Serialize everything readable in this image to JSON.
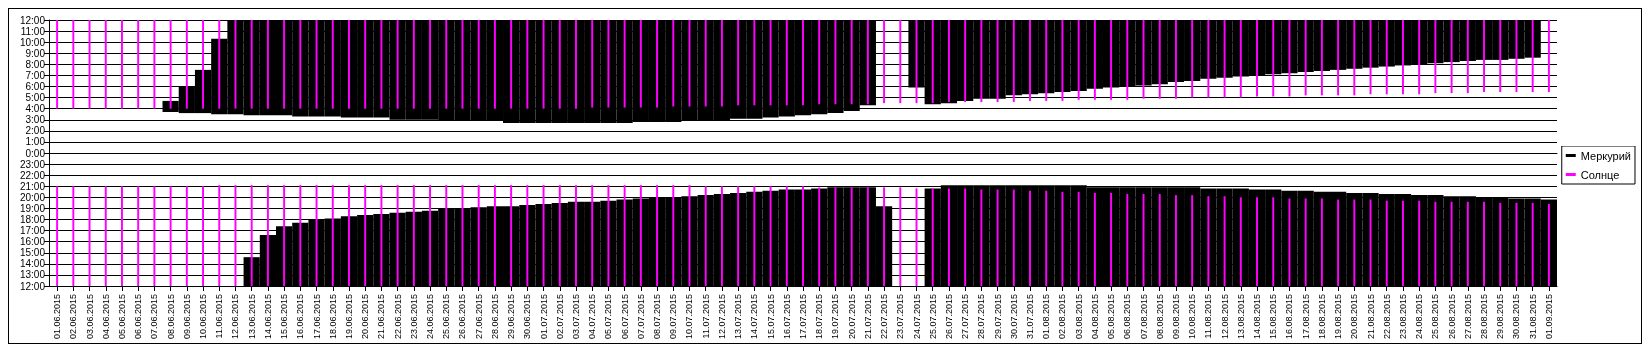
{
  "chart_data": [
    {
      "type": "bar",
      "categories": [
        "01.06.2015",
        "02.06.2015",
        "03.06.2015",
        "04.06.2015",
        "05.06.2015",
        "06.06.2015",
        "07.06.2015",
        "08.06.2015",
        "09.06.2015",
        "10.06.2015",
        "11.06.2015",
        "12.06.2015",
        "13.06.2015",
        "14.06.2015",
        "15.06.2015",
        "16.06.2015",
        "17.06.2015",
        "18.06.2015",
        "19.06.2015",
        "20.06.2015",
        "21.06.2015",
        "22.06.2015",
        "23.06.2015",
        "24.06.2015",
        "25.06.2015",
        "26.06.2015",
        "27.06.2015",
        "28.06.2015",
        "29.06.2015",
        "30.06.2015",
        "01.07.2015",
        "02.07.2015",
        "03.07.2015",
        "04.07.2015",
        "05.07.2015",
        "06.07.2015",
        "07.07.2015",
        "08.07.2015",
        "09.07.2015",
        "10.07.2015",
        "11.07.2015",
        "12.07.2015",
        "13.07.2015",
        "14.07.2015",
        "15.07.2015",
        "16.07.2015",
        "17.07.2015",
        "18.07.2015",
        "19.07.2015",
        "20.07.2015",
        "21.07.2015",
        "22.07.2015",
        "23.07.2015",
        "24.07.2015",
        "25.07.2015",
        "26.07.2015",
        "27.07.2015",
        "28.07.2015",
        "29.07.2015",
        "30.07.2015",
        "31.07.2015",
        "01.08.2015",
        "02.08.2015",
        "03.08.2015",
        "04.08.2015",
        "05.08.2015",
        "06.08.2015",
        "07.08.2015",
        "08.08.2015",
        "09.08.2015",
        "10.08.2015",
        "11.08.2015",
        "12.08.2015",
        "13.08.2015",
        "14.08.2015",
        "15.08.2015",
        "16.08.2015",
        "17.08.2015",
        "18.08.2015",
        "19.08.2015",
        "20.08.2015",
        "21.08.2015",
        "22.08.2015",
        "23.08.2015",
        "24.08.2015",
        "25.08.2015",
        "26.08.2015",
        "27.08.2015",
        "28.08.2015",
        "29.08.2015",
        "30.08.2015",
        "31.08.2015",
        "01.09.2015"
      ],
      "series": [
        {
          "color": "#000000",
          "base": [
            null,
            null,
            null,
            null,
            null,
            null,
            null,
            3.7,
            3.6,
            3.6,
            3.5,
            3.5,
            3.4,
            3.4,
            3.4,
            3.3,
            3.3,
            3.3,
            3.2,
            3.2,
            3.2,
            3.0,
            3.0,
            3.0,
            2.9,
            2.9,
            2.9,
            2.9,
            2.7,
            2.7,
            2.7,
            2.7,
            2.7,
            2.7,
            2.7,
            2.7,
            2.8,
            2.8,
            2.8,
            2.9,
            2.9,
            2.9,
            3.1,
            3.1,
            3.2,
            3.3,
            3.4,
            3.5,
            3.6,
            3.8,
            4.3,
            null,
            null,
            5.9,
            4.4,
            4.5,
            4.7,
            4.9,
            4.9,
            5.2,
            5.3,
            5.4,
            5.5,
            5.6,
            5.8,
            5.9,
            6.0,
            6.1,
            6.2,
            6.4,
            6.5,
            6.7,
            6.8,
            6.9,
            7.0,
            7.1,
            7.2,
            7.3,
            7.4,
            7.5,
            7.6,
            7.7,
            7.8,
            7.9,
            8.0,
            8.1,
            8.2,
            8.3,
            8.4,
            8.4,
            8.5,
            8.6,
            null
          ],
          "values": [
            null,
            null,
            null,
            null,
            null,
            null,
            null,
            1.0,
            2.4,
            3.9,
            6.8,
            8.5,
            8.6,
            8.6,
            8.6,
            8.7,
            8.7,
            8.7,
            8.8,
            8.8,
            8.8,
            9.0,
            9.0,
            9.0,
            9.1,
            9.1,
            9.1,
            9.1,
            9.3,
            9.3,
            9.3,
            9.3,
            9.3,
            9.3,
            9.3,
            9.3,
            9.2,
            9.2,
            9.2,
            9.1,
            9.1,
            9.1,
            8.9,
            8.9,
            8.8,
            8.7,
            8.6,
            8.5,
            8.4,
            8.2,
            7.7,
            null,
            null,
            6.1,
            7.6,
            7.5,
            7.3,
            7.1,
            7.1,
            6.8,
            6.7,
            6.6,
            6.5,
            6.4,
            6.2,
            6.1,
            6.0,
            5.9,
            5.8,
            5.6,
            5.5,
            5.3,
            5.2,
            5.1,
            5.0,
            4.9,
            4.8,
            4.7,
            4.6,
            4.5,
            4.4,
            4.3,
            4.2,
            4.1,
            4.0,
            3.9,
            3.8,
            3.7,
            3.6,
            3.6,
            3.5,
            3.4,
            null
          ]
        },
        {
          "color": "#ff00ff",
          "base": [
            4.0,
            4.0,
            4.0,
            4.0,
            4.0,
            4.0,
            4.0,
            4.0,
            4.0,
            4.0,
            4.0,
            4.0,
            4.0,
            4.0,
            4.0,
            4.0,
            4.0,
            4.0,
            4.0,
            4.0,
            4.0,
            4.0,
            4.0,
            4.0,
            4.0,
            4.0,
            4.0,
            4.0,
            4.0,
            4.0,
            4.0,
            4.0,
            4.0,
            4.1,
            4.1,
            4.1,
            4.1,
            4.1,
            4.2,
            4.2,
            4.2,
            4.2,
            4.3,
            4.3,
            4.3,
            4.3,
            4.3,
            4.4,
            4.4,
            4.4,
            4.4,
            4.5,
            4.5,
            4.5,
            4.5,
            4.6,
            4.6,
            4.6,
            4.6,
            4.6,
            4.7,
            4.7,
            4.7,
            4.8,
            4.8,
            4.8,
            4.8,
            4.9,
            4.9,
            4.9,
            5.0,
            5.0,
            5.0,
            5.0,
            5.1,
            5.1,
            5.1,
            5.2,
            5.2,
            5.2,
            5.2,
            5.3,
            5.3,
            5.3,
            5.3,
            5.4,
            5.4,
            5.4,
            5.5,
            5.5,
            5.5,
            5.5,
            5.5
          ],
          "values": [
            8.0,
            8.0,
            8.0,
            8.0,
            8.0,
            8.0,
            8.0,
            8.0,
            8.0,
            8.0,
            8.0,
            8.0,
            8.0,
            8.0,
            8.0,
            8.0,
            8.0,
            8.0,
            8.0,
            8.0,
            8.0,
            8.0,
            8.0,
            8.0,
            8.0,
            8.0,
            8.0,
            8.0,
            8.0,
            8.0,
            8.0,
            8.0,
            8.0,
            7.9,
            7.9,
            7.9,
            7.9,
            7.9,
            7.8,
            7.8,
            7.8,
            7.8,
            7.7,
            7.7,
            7.7,
            7.7,
            7.7,
            7.6,
            7.6,
            7.6,
            7.6,
            7.5,
            7.5,
            7.5,
            7.5,
            7.4,
            7.4,
            7.4,
            7.4,
            7.4,
            7.3,
            7.3,
            7.3,
            7.2,
            7.2,
            7.2,
            7.2,
            7.1,
            7.1,
            7.1,
            7.0,
            7.0,
            7.0,
            7.0,
            6.9,
            6.9,
            6.9,
            6.8,
            6.8,
            6.8,
            6.8,
            6.7,
            6.7,
            6.7,
            6.7,
            6.6,
            6.6,
            6.6,
            6.5,
            6.5,
            6.5,
            6.5,
            6.5
          ]
        }
      ],
      "ylim": [
        0,
        12
      ],
      "yticks": [
        {
          "value": 0,
          "label": "0:00"
        },
        {
          "value": 1,
          "label": "1:00"
        },
        {
          "value": 2,
          "label": "2:00"
        },
        {
          "value": 3,
          "label": "3:00"
        },
        {
          "value": 4,
          "label": "4:00"
        },
        {
          "value": 5,
          "label": "5:00"
        },
        {
          "value": 6,
          "label": "6:00"
        },
        {
          "value": 7,
          "label": "7:00"
        },
        {
          "value": 8,
          "label": "8:00"
        },
        {
          "value": 9,
          "label": "9:00"
        },
        {
          "value": 10,
          "label": "10:00"
        },
        {
          "value": 11,
          "label": "11:00"
        },
        {
          "value": 12,
          "label": "12:00"
        }
      ],
      "tick_labels": "y",
      "grid": "y"
    },
    {
      "type": "bar",
      "categories": [
        "01.06.2015",
        "02.06.2015",
        "03.06.2015",
        "04.06.2015",
        "05.06.2015",
        "06.06.2015",
        "07.06.2015",
        "08.06.2015",
        "09.06.2015",
        "10.06.2015",
        "11.06.2015",
        "12.06.2015",
        "13.06.2015",
        "14.06.2015",
        "15.06.2015",
        "16.06.2015",
        "17.06.2015",
        "18.06.2015",
        "19.06.2015",
        "20.06.2015",
        "21.06.2015",
        "22.06.2015",
        "23.06.2015",
        "24.06.2015",
        "25.06.2015",
        "26.06.2015",
        "27.06.2015",
        "28.06.2015",
        "29.06.2015",
        "30.06.2015",
        "01.07.2015",
        "02.07.2015",
        "03.07.2015",
        "04.07.2015",
        "05.07.2015",
        "06.07.2015",
        "07.07.2015",
        "08.07.2015",
        "09.07.2015",
        "10.07.2015",
        "11.07.2015",
        "12.07.2015",
        "13.07.2015",
        "14.07.2015",
        "15.07.2015",
        "16.07.2015",
        "17.07.2015",
        "18.07.2015",
        "19.07.2015",
        "20.07.2015",
        "21.07.2015",
        "22.07.2015",
        "23.07.2015",
        "24.07.2015",
        "25.07.2015",
        "26.07.2015",
        "27.07.2015",
        "28.07.2015",
        "29.07.2015",
        "30.07.2015",
        "31.07.2015",
        "01.08.2015",
        "02.08.2015",
        "03.08.2015",
        "04.08.2015",
        "05.08.2015",
        "06.08.2015",
        "07.08.2015",
        "08.08.2015",
        "09.08.2015",
        "10.08.2015",
        "11.08.2015",
        "12.08.2015",
        "13.08.2015",
        "14.08.2015",
        "15.08.2015",
        "16.08.2015",
        "17.08.2015",
        "18.08.2015",
        "19.08.2015",
        "20.08.2015",
        "21.08.2015",
        "22.08.2015",
        "23.08.2015",
        "24.08.2015",
        "25.08.2015",
        "26.08.2015",
        "27.08.2015",
        "28.08.2015",
        "29.08.2015",
        "30.08.2015",
        "31.08.2015",
        "01.09.2015"
      ],
      "series": [
        {
          "name": "Меркурий",
          "color": "#000000",
          "values": [
            null,
            null,
            null,
            null,
            null,
            null,
            null,
            null,
            null,
            null,
            null,
            null,
            14.6,
            16.6,
            17.4,
            17.7,
            18.0,
            18.1,
            18.3,
            18.4,
            18.5,
            18.6,
            18.7,
            18.8,
            19.0,
            19.0,
            19.1,
            19.2,
            19.2,
            19.3,
            19.4,
            19.5,
            19.6,
            19.6,
            19.7,
            19.8,
            19.9,
            20.0,
            20.0,
            20.1,
            20.2,
            20.3,
            20.4,
            20.5,
            20.6,
            20.7,
            20.7,
            20.8,
            20.9,
            20.9,
            20.9,
            19.2,
            null,
            null,
            20.8,
            21.1,
            21.1,
            21.1,
            21.1,
            21.1,
            21.1,
            21.1,
            21.1,
            21.1,
            20.9,
            20.9,
            20.9,
            20.9,
            20.9,
            20.9,
            20.9,
            20.8,
            20.8,
            20.8,
            20.7,
            20.7,
            20.6,
            20.6,
            20.5,
            20.5,
            20.4,
            20.4,
            20.3,
            20.3,
            20.2,
            20.2,
            20.1,
            20.1,
            20.0,
            20.0,
            19.9,
            19.9,
            19.8
          ]
        },
        {
          "name": "Солнце",
          "color": "#ff00ff",
          "values": [
            21.0,
            21.0,
            21.0,
            21.0,
            21.0,
            21.0,
            21.0,
            21.0,
            21.0,
            21.0,
            21.1,
            21.1,
            21.1,
            21.1,
            21.1,
            21.1,
            21.1,
            21.1,
            21.1,
            21.1,
            21.1,
            21.1,
            21.1,
            21.1,
            21.1,
            21.1,
            21.1,
            21.1,
            21.1,
            21.1,
            21.1,
            21.1,
            21.1,
            21.1,
            21.1,
            21.1,
            21.1,
            21.1,
            21.1,
            21.1,
            21.0,
            21.0,
            21.0,
            21.0,
            21.0,
            21.0,
            21.0,
            20.9,
            20.9,
            20.9,
            20.9,
            20.9,
            20.9,
            20.8,
            20.8,
            20.8,
            20.8,
            20.7,
            20.7,
            20.7,
            20.6,
            20.6,
            20.5,
            20.5,
            20.4,
            20.4,
            20.3,
            20.3,
            20.3,
            20.2,
            20.2,
            20.1,
            20.1,
            20.0,
            20.0,
            20.0,
            19.9,
            19.9,
            19.9,
            19.8,
            19.8,
            19.8,
            19.7,
            19.7,
            19.7,
            19.6,
            19.6,
            19.6,
            19.6,
            19.5,
            19.5,
            19.5,
            19.4
          ]
        }
      ],
      "ylim": [
        12,
        24
      ],
      "yticks": [
        {
          "value": 12,
          "label": "12:00"
        },
        {
          "value": 13,
          "label": "13:00"
        },
        {
          "value": 14,
          "label": "14:00"
        },
        {
          "value": 15,
          "label": "15:00"
        },
        {
          "value": 16,
          "label": "16:00"
        },
        {
          "value": 17,
          "label": "17:00"
        },
        {
          "value": 18,
          "label": "18:00"
        },
        {
          "value": 19,
          "label": "19:00"
        },
        {
          "value": 20,
          "label": "20:00"
        },
        {
          "value": 21,
          "label": "21:00"
        },
        {
          "value": 22,
          "label": "22:00"
        },
        {
          "value": 23,
          "label": "23:00"
        }
      ],
      "grid": "y",
      "legend": "top right"
    }
  ]
}
